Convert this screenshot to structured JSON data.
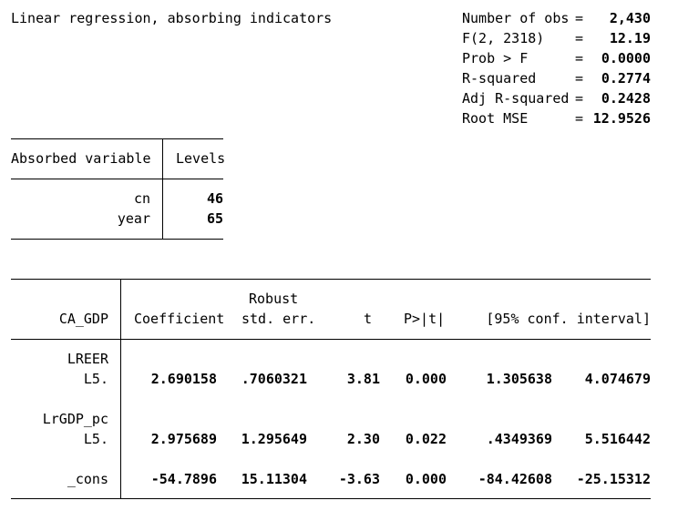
{
  "title": "Linear regression, absorbing indicators",
  "stats": [
    {
      "label": "Number of obs",
      "eq": "=",
      "value": "2,430"
    },
    {
      "label": "F(2, 2318)",
      "eq": "=",
      "value": "12.19"
    },
    {
      "label": "Prob > F",
      "eq": "=",
      "value": "0.0000"
    },
    {
      "label": "R-squared",
      "eq": "=",
      "value": "0.2774"
    },
    {
      "label": "Adj R-squared",
      "eq": "=",
      "value": "0.2428"
    },
    {
      "label": "Root MSE",
      "eq": "=",
      "value": "12.9526"
    }
  ],
  "absorbed": {
    "header_var": "Absorbed variable",
    "header_levels": "Levels",
    "rows": [
      {
        "name": "cn",
        "levels": "46"
      },
      {
        "name": "year",
        "levels": "65"
      }
    ]
  },
  "regression": {
    "depvar": "CA_GDP",
    "col_robust": "Robust",
    "col_coef": "Coefficient",
    "col_se": "std. err.",
    "col_t": "t",
    "col_p": "P>|t|",
    "col_ci": "[95% conf. interval]",
    "rows": [
      {
        "var": "LREER",
        "lag": "L5.",
        "coef": "2.690158",
        "se": ".7060321",
        "t": "3.81",
        "p": "0.000",
        "lo": "1.305638",
        "hi": "4.074679"
      },
      {
        "var": "LrGDP_pc",
        "lag": "L5.",
        "coef": "2.975689",
        "se": "1.295649",
        "t": "2.30",
        "p": "0.022",
        "lo": ".4349369",
        "hi": "5.516442"
      },
      {
        "var": "_cons",
        "coef": "-54.7896",
        "se": "15.11304",
        "t": "-3.63",
        "p": "0.000",
        "lo": "-84.42608",
        "hi": "-25.15312"
      }
    ]
  }
}
